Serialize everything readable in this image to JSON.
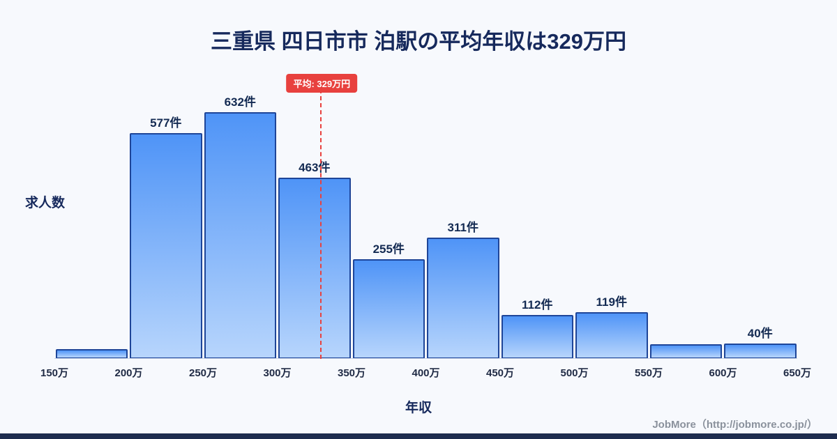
{
  "title": "三重県 四日市市 泊駅の平均年収は329万円",
  "footer": "JobMore（http://jobmore.co.jp/）",
  "colors": {
    "background": "#f7f9fd",
    "title_navy": "#16295c",
    "bar_gradient_top": "#4f94f7",
    "bar_gradient_bottom": "#b7d5fc",
    "bar_border": "#1e4598",
    "average_red": "#e8413e",
    "footer_gray": "#8a919c",
    "bottom_strip_navy": "#1e2c4e"
  },
  "chart_data": {
    "type": "bar",
    "title": "三重県 四日市市 泊駅の平均年収は329万円",
    "xlabel": "年収",
    "ylabel": "求人数",
    "x_ticks": [
      "150万",
      "200万",
      "250万",
      "300万",
      "350万",
      "400万",
      "450万",
      "500万",
      "550万",
      "600万",
      "650万"
    ],
    "xlim": [
      150,
      650
    ],
    "ylim": [
      0,
      740
    ],
    "grid": false,
    "legend": false,
    "bins": [
      {
        "range": "150万-200万",
        "value": 25,
        "label": ""
      },
      {
        "range": "200万-250万",
        "value": 577,
        "label": "577件"
      },
      {
        "range": "250万-300万",
        "value": 632,
        "label": "632件"
      },
      {
        "range": "300万-350万",
        "value": 463,
        "label": "463件"
      },
      {
        "range": "350万-400万",
        "value": 255,
        "label": "255件"
      },
      {
        "range": "400万-450万",
        "value": 311,
        "label": "311件"
      },
      {
        "range": "450万-500万",
        "value": 112,
        "label": "112件"
      },
      {
        "range": "500万-550万",
        "value": 119,
        "label": "119件"
      },
      {
        "range": "550万-600万",
        "value": 38,
        "label": ""
      },
      {
        "range": "600万-650万",
        "value": 40,
        "label": "40件"
      }
    ],
    "average_line": {
      "x": 329,
      "label": "平均: 329万円"
    }
  }
}
